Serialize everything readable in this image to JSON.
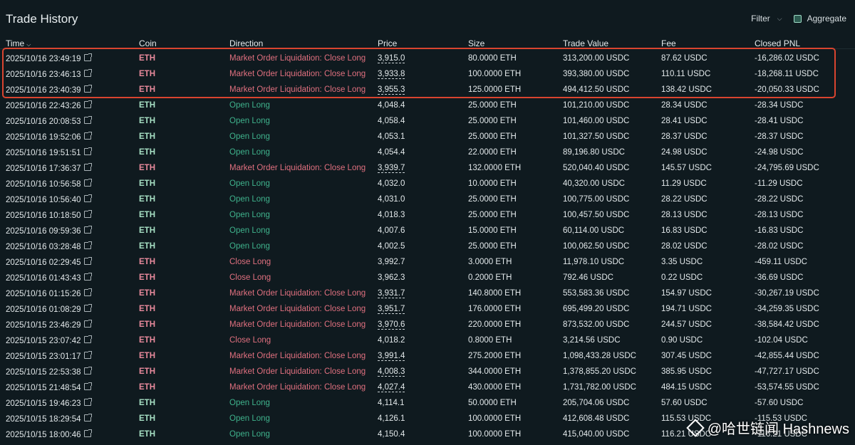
{
  "title": "Trade History",
  "toolbar": {
    "filter_label": "Filter",
    "aggregate_label": "Aggregate",
    "aggregate_checked": true
  },
  "columns": {
    "time": "Time",
    "coin": "Coin",
    "direction": "Direction",
    "price": "Price",
    "size": "Size",
    "trade_value": "Trade Value",
    "fee": "Fee",
    "closed_pnl": "Closed PNL"
  },
  "rows": [
    {
      "time": "2025/10/16 23:49:19",
      "coin": "ETH",
      "direction": "Market Order Liquidation: Close Long",
      "price": "3,915.0",
      "size": "80.0000 ETH",
      "value": "313,200.00 USDC",
      "fee": "87.62 USDC",
      "pnl": "-16,286.02 USDC",
      "kind": "liq"
    },
    {
      "time": "2025/10/16 23:46:13",
      "coin": "ETH",
      "direction": "Market Order Liquidation: Close Long",
      "price": "3,933.8",
      "size": "100.0000 ETH",
      "value": "393,380.00 USDC",
      "fee": "110.11 USDC",
      "pnl": "-18,268.11 USDC",
      "kind": "liq"
    },
    {
      "time": "2025/10/16 23:40:39",
      "coin": "ETH",
      "direction": "Market Order Liquidation: Close Long",
      "price": "3,955.3",
      "size": "125.0000 ETH",
      "value": "494,412.50 USDC",
      "fee": "138.42 USDC",
      "pnl": "-20,050.33 USDC",
      "kind": "liq"
    },
    {
      "time": "2025/10/16 22:43:26",
      "coin": "ETH",
      "direction": "Open Long",
      "price": "4,048.4",
      "size": "25.0000 ETH",
      "value": "101,210.00 USDC",
      "fee": "28.34 USDC",
      "pnl": "-28.34 USDC",
      "kind": "open"
    },
    {
      "time": "2025/10/16 20:08:53",
      "coin": "ETH",
      "direction": "Open Long",
      "price": "4,058.4",
      "size": "25.0000 ETH",
      "value": "101,460.00 USDC",
      "fee": "28.41 USDC",
      "pnl": "-28.41 USDC",
      "kind": "open"
    },
    {
      "time": "2025/10/16 19:52:06",
      "coin": "ETH",
      "direction": "Open Long",
      "price": "4,053.1",
      "size": "25.0000 ETH",
      "value": "101,327.50 USDC",
      "fee": "28.37 USDC",
      "pnl": "-28.37 USDC",
      "kind": "open"
    },
    {
      "time": "2025/10/16 19:51:51",
      "coin": "ETH",
      "direction": "Open Long",
      "price": "4,054.4",
      "size": "22.0000 ETH",
      "value": "89,196.80 USDC",
      "fee": "24.98 USDC",
      "pnl": "-24.98 USDC",
      "kind": "open"
    },
    {
      "time": "2025/10/16 17:36:37",
      "coin": "ETH",
      "direction": "Market Order Liquidation: Close Long",
      "price": "3,939.7",
      "size": "132.0000 ETH",
      "value": "520,040.40 USDC",
      "fee": "145.57 USDC",
      "pnl": "-24,795.69 USDC",
      "kind": "liq"
    },
    {
      "time": "2025/10/16 10:56:58",
      "coin": "ETH",
      "direction": "Open Long",
      "price": "4,032.0",
      "size": "10.0000 ETH",
      "value": "40,320.00 USDC",
      "fee": "11.29 USDC",
      "pnl": "-11.29 USDC",
      "kind": "open"
    },
    {
      "time": "2025/10/16 10:56:40",
      "coin": "ETH",
      "direction": "Open Long",
      "price": "4,031.0",
      "size": "25.0000 ETH",
      "value": "100,775.00 USDC",
      "fee": "28.22 USDC",
      "pnl": "-28.22 USDC",
      "kind": "open"
    },
    {
      "time": "2025/10/16 10:18:50",
      "coin": "ETH",
      "direction": "Open Long",
      "price": "4,018.3",
      "size": "25.0000 ETH",
      "value": "100,457.50 USDC",
      "fee": "28.13 USDC",
      "pnl": "-28.13 USDC",
      "kind": "open"
    },
    {
      "time": "2025/10/16 09:59:36",
      "coin": "ETH",
      "direction": "Open Long",
      "price": "4,007.6",
      "size": "15.0000 ETH",
      "value": "60,114.00 USDC",
      "fee": "16.83 USDC",
      "pnl": "-16.83 USDC",
      "kind": "open"
    },
    {
      "time": "2025/10/16 03:28:48",
      "coin": "ETH",
      "direction": "Open Long",
      "price": "4,002.5",
      "size": "25.0000 ETH",
      "value": "100,062.50 USDC",
      "fee": "28.02 USDC",
      "pnl": "-28.02 USDC",
      "kind": "open"
    },
    {
      "time": "2025/10/16 02:29:45",
      "coin": "ETH",
      "direction": "Close Long",
      "price": "3,992.7",
      "size": "3.0000 ETH",
      "value": "11,978.10 USDC",
      "fee": "3.35 USDC",
      "pnl": "-459.11 USDC",
      "kind": "close"
    },
    {
      "time": "2025/10/16 01:43:43",
      "coin": "ETH",
      "direction": "Close Long",
      "price": "3,962.3",
      "size": "0.2000 ETH",
      "value": "792.46 USDC",
      "fee": "0.22 USDC",
      "pnl": "-36.69 USDC",
      "kind": "close"
    },
    {
      "time": "2025/10/16 01:15:26",
      "coin": "ETH",
      "direction": "Market Order Liquidation: Close Long",
      "price": "3,931.7",
      "size": "140.8000 ETH",
      "value": "553,583.36 USDC",
      "fee": "154.97 USDC",
      "pnl": "-30,267.19 USDC",
      "kind": "liq"
    },
    {
      "time": "2025/10/16 01:08:29",
      "coin": "ETH",
      "direction": "Market Order Liquidation: Close Long",
      "price": "3,951.7",
      "size": "176.0000 ETH",
      "value": "695,499.20 USDC",
      "fee": "194.71 USDC",
      "pnl": "-34,259.35 USDC",
      "kind": "liq"
    },
    {
      "time": "2025/10/15 23:46:29",
      "coin": "ETH",
      "direction": "Market Order Liquidation: Close Long",
      "price": "3,970.6",
      "size": "220.0000 ETH",
      "value": "873,532.00 USDC",
      "fee": "244.57 USDC",
      "pnl": "-38,584.42 USDC",
      "kind": "liq"
    },
    {
      "time": "2025/10/15 23:07:42",
      "coin": "ETH",
      "direction": "Close Long",
      "price": "4,018.2",
      "size": "0.8000 ETH",
      "value": "3,214.56 USDC",
      "fee": "0.90 USDC",
      "pnl": "-102.04 USDC",
      "kind": "close"
    },
    {
      "time": "2025/10/15 23:01:17",
      "coin": "ETH",
      "direction": "Market Order Liquidation: Close Long",
      "price": "3,991.4",
      "size": "275.2000 ETH",
      "value": "1,098,433.28 USDC",
      "fee": "307.45 USDC",
      "pnl": "-42,855.44 USDC",
      "kind": "liq"
    },
    {
      "time": "2025/10/15 22:53:38",
      "coin": "ETH",
      "direction": "Market Order Liquidation: Close Long",
      "price": "4,008.3",
      "size": "344.0000 ETH",
      "value": "1,378,855.20 USDC",
      "fee": "385.95 USDC",
      "pnl": "-47,727.17 USDC",
      "kind": "liq"
    },
    {
      "time": "2025/10/15 21:48:54",
      "coin": "ETH",
      "direction": "Market Order Liquidation: Close Long",
      "price": "4,027.4",
      "size": "430.0000 ETH",
      "value": "1,731,782.00 USDC",
      "fee": "484.15 USDC",
      "pnl": "-53,574.55 USDC",
      "kind": "liq"
    },
    {
      "time": "2025/10/15 19:46:23",
      "coin": "ETH",
      "direction": "Open Long",
      "price": "4,114.1",
      "size": "50.0000 ETH",
      "value": "205,704.06 USDC",
      "fee": "57.60 USDC",
      "pnl": "-57.60 USDC",
      "kind": "open"
    },
    {
      "time": "2025/10/15 18:29:54",
      "coin": "ETH",
      "direction": "Open Long",
      "price": "4,126.1",
      "size": "100.0000 ETH",
      "value": "412,608.48 USDC",
      "fee": "115.53 USDC",
      "pnl": "-115.53 USDC",
      "kind": "open"
    },
    {
      "time": "2025/10/15 18:00:46",
      "coin": "ETH",
      "direction": "Open Long",
      "price": "4,150.4",
      "size": "100.0000 ETH",
      "value": "415,040.00 USDC",
      "fee": "116.21 USDC",
      "pnl": "-116.21 USDC",
      "kind": "open"
    }
  ],
  "watermark": "@哈世链闻 Hashnews"
}
